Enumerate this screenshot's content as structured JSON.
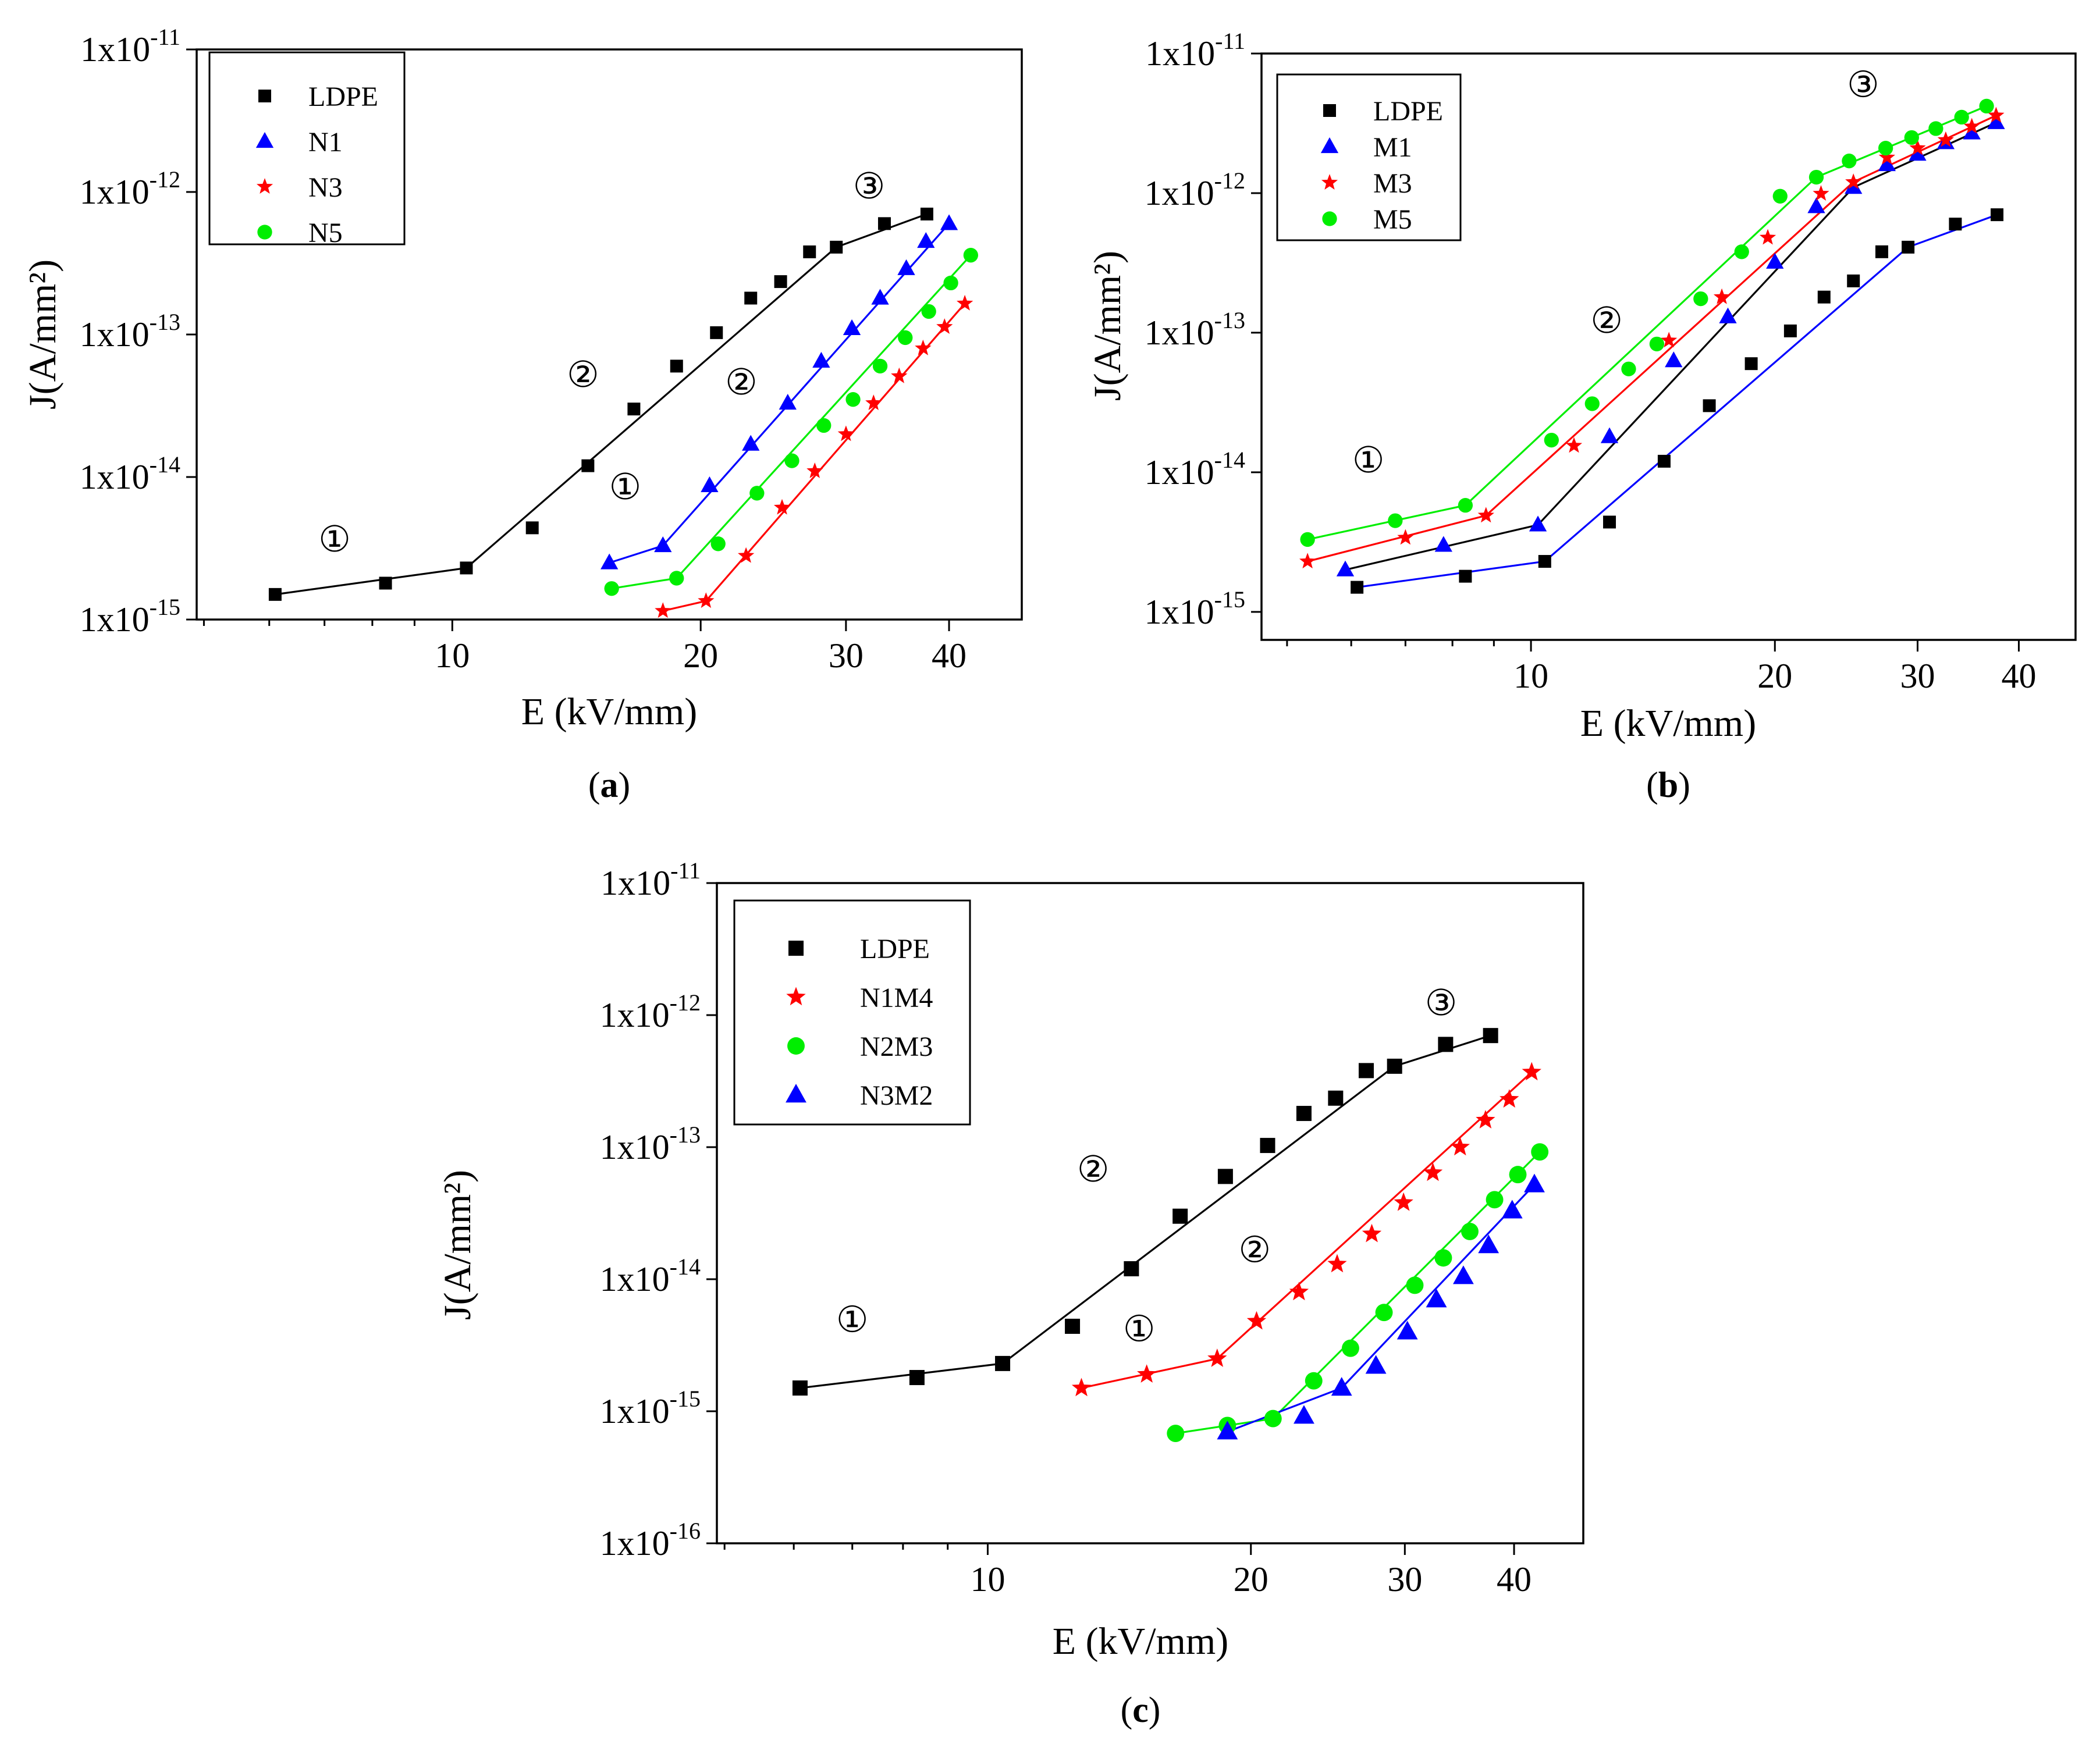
{
  "figure": {
    "captions": [
      "(a)",
      "(b)",
      "(c)"
    ],
    "annotation_symbols": {
      "one": "①",
      "two": "②",
      "three": "③"
    }
  },
  "colors": {
    "LDPE": "#000000",
    "blue": "#0000ff",
    "red": "#ff0000",
    "green": "#00ee00"
  },
  "chart_data": [
    {
      "id": "a",
      "type": "scatter",
      "scale": "log-log",
      "caption_letter": "a",
      "xlabel": "E (kV/mm)",
      "ylabel": "J(A/mm²)",
      "xlim": [
        4.9,
        49
      ],
      "ylim": [
        1e-15,
        1e-11
      ],
      "y_decades": [
        -15,
        -14,
        -13,
        -12,
        -11
      ],
      "x_ticks": [
        10,
        20,
        30,
        40
      ],
      "x_tick_labels": [
        "10",
        "20",
        "30",
        "40"
      ],
      "legend": [
        "LDPE",
        "N1",
        "N3",
        "N5"
      ],
      "series": [
        {
          "name": "LDPE",
          "marker": "square",
          "color": "#000000",
          "x": [
            6.1,
            8.3,
            10.4,
            12.5,
            14.6,
            16.6,
            18.7,
            20.9,
            23.0,
            25.0,
            27.1,
            29.2,
            33.4,
            37.6
          ],
          "y": [
            1.5e-15,
            1.8e-15,
            2.3e-15,
            4.4e-15,
            1.2e-14,
            3e-14,
            6e-14,
            1.03e-13,
            1.8e-13,
            2.35e-13,
            3.8e-13,
            4.1e-13,
            6e-13,
            7e-13
          ],
          "fit_segments": [
            [
              0,
              2
            ],
            [
              2,
              11
            ],
            [
              11,
              13
            ]
          ]
        },
        {
          "name": "N1",
          "marker": "triangle",
          "color": "#0000ff",
          "x": [
            15.5,
            18.0,
            20.5,
            23.0,
            25.5,
            28.0,
            30.5,
            33.0,
            35.5,
            37.5,
            40.0
          ],
          "y": [
            2.5e-15,
            3.3e-15,
            8.7e-15,
            1.7e-14,
            3.3e-14,
            6.5e-14,
            1.1e-13,
            1.8e-13,
            2.9e-13,
            4.5e-13,
            6e-13
          ],
          "fit_segments": [
            [
              0,
              1
            ],
            [
              1,
              10
            ]
          ]
        },
        {
          "name": "N3",
          "marker": "star",
          "color": "#ff0000",
          "x": [
            18.0,
            20.3,
            22.7,
            25.1,
            27.5,
            30.0,
            32.4,
            34.8,
            37.2,
            39.5,
            41.8
          ],
          "y": [
            1.15e-15,
            1.35e-15,
            2.8e-15,
            6.1e-15,
            1.1e-14,
            2e-14,
            3.3e-14,
            5.1e-14,
            8e-14,
            1.13e-13,
            1.65e-13
          ],
          "fit_segments": [
            [
              0,
              1
            ],
            [
              1,
              10
            ]
          ]
        },
        {
          "name": "N5",
          "marker": "circle",
          "color": "#00ee00",
          "x": [
            15.6,
            18.7,
            21.0,
            23.4,
            25.8,
            28.2,
            30.6,
            33.0,
            35.4,
            37.8,
            40.2,
            42.5
          ],
          "y": [
            1.65e-15,
            1.95e-15,
            3.4e-15,
            7.7e-15,
            1.3e-14,
            2.3e-14,
            3.5e-14,
            6e-14,
            9.5e-14,
            1.45e-13,
            2.3e-13,
            3.6e-13
          ],
          "fit_segments": [
            [
              0,
              1
            ],
            [
              1,
              11
            ]
          ]
        }
      ],
      "annotations": [
        {
          "text": "①",
          "x": 7.2,
          "y": 3e-15
        },
        {
          "text": "②",
          "x": 14.4,
          "y": 4.3e-14
        },
        {
          "text": "③",
          "x": 32.0,
          "y": 9e-13
        },
        {
          "text": "①",
          "x": 16.2,
          "y": 7e-15
        },
        {
          "text": "②",
          "x": 22.4,
          "y": 3.8e-14
        }
      ]
    },
    {
      "id": "b",
      "type": "scatter",
      "scale": "log-log",
      "caption_letter": "b",
      "xlabel": "E (kV/mm)",
      "ylabel": "J(A/mm²)",
      "xlim": [
        4.65,
        47
      ],
      "ylim": [
        6.3e-16,
        1e-11
      ],
      "y_decades": [
        -15,
        -14,
        -13,
        -12,
        -11
      ],
      "x_ticks": [
        10,
        20,
        30,
        40
      ],
      "x_tick_labels": [
        "10",
        "20",
        "30",
        "40"
      ],
      "legend": [
        "LDPE",
        "M1",
        "M3",
        "M5"
      ],
      "series": [
        {
          "name": "LDPE",
          "marker": "square",
          "color": "#000000",
          "line_color": "#0000ff",
          "x": [
            6.1,
            8.3,
            10.4,
            12.5,
            14.6,
            16.6,
            18.7,
            20.9,
            23.0,
            25.0,
            27.1,
            29.2,
            33.4,
            37.6
          ],
          "y": [
            1.5e-15,
            1.8e-15,
            2.3e-15,
            4.4e-15,
            1.2e-14,
            3e-14,
            6e-14,
            1.03e-13,
            1.8e-13,
            2.35e-13,
            3.8e-13,
            4.1e-13,
            6e-13,
            7e-13
          ],
          "fit_segments": [
            [
              0,
              2
            ],
            [
              2,
              11
            ],
            [
              11,
              13
            ]
          ]
        },
        {
          "name": "M1",
          "marker": "triangle",
          "color": "#0000ff",
          "line_color": "#000000",
          "x": [
            5.9,
            7.8,
            10.2,
            12.5,
            15.0,
            17.5,
            20.0,
            22.5,
            25.0,
            27.5,
            30.0,
            32.5,
            35.0,
            37.5
          ],
          "y": [
            2e-15,
            3e-15,
            4.2e-15,
            1.8e-14,
            6.3e-14,
            1.3e-13,
            3.2e-13,
            8e-13,
            1.1e-12,
            1.6e-12,
            1.9e-12,
            2.3e-12,
            2.7e-12,
            3.2e-12
          ],
          "fit_segments": [
            [
              0,
              2
            ],
            [
              2,
              8
            ],
            [
              8,
              13
            ]
          ]
        },
        {
          "name": "M3",
          "marker": "star",
          "color": "#ff0000",
          "x": [
            5.3,
            7.0,
            8.8,
            11.3,
            14.8,
            17.2,
            19.6,
            22.8,
            25.0,
            27.5,
            30.0,
            32.5,
            35.0,
            37.5
          ],
          "y": [
            2.3e-15,
            3.4e-15,
            4.9e-15,
            1.55e-14,
            8.8e-14,
            1.8e-13,
            4.8e-13,
            9.9e-13,
            1.2e-12,
            1.8e-12,
            2.1e-12,
            2.4e-12,
            3e-12,
            3.6e-12
          ],
          "fit_segments": [
            [
              0,
              2
            ],
            [
              2,
              8
            ],
            [
              8,
              13
            ]
          ]
        },
        {
          "name": "M5",
          "marker": "circle",
          "color": "#00ee00",
          "x": [
            5.3,
            6.8,
            8.3,
            10.6,
            11.9,
            13.2,
            14.3,
            16.2,
            18.2,
            20.3,
            22.5,
            24.7,
            27.4,
            29.5,
            31.6,
            34.0,
            36.5
          ],
          "y": [
            3.3e-15,
            4.5e-15,
            5.8e-15,
            1.7e-14,
            3.1e-14,
            5.5e-14,
            8.3e-14,
            1.75e-13,
            3.8e-13,
            9.5e-13,
            1.3e-12,
            1.7e-12,
            2.1e-12,
            2.5e-12,
            2.9e-12,
            3.5e-12,
            4.2e-12
          ],
          "fit_segments": [
            [
              0,
              2
            ],
            [
              2,
              10
            ],
            [
              10,
              16
            ]
          ]
        }
      ],
      "annotations": [
        {
          "text": "①",
          "x": 6.3,
          "y": 1e-14
        },
        {
          "text": "②",
          "x": 12.4,
          "y": 1e-13
        },
        {
          "text": "③",
          "x": 25.7,
          "y": 4.9e-12
        }
      ]
    },
    {
      "id": "c",
      "type": "scatter",
      "scale": "log-log",
      "caption_letter": "c",
      "xlabel": "E (kV/mm)",
      "ylabel": "J(A/mm²)",
      "xlim": [
        4.9,
        48
      ],
      "ylim": [
        1e-16,
        1e-11
      ],
      "y_decades": [
        -16,
        -15,
        -14,
        -13,
        -12,
        -11
      ],
      "x_ticks": [
        10,
        20,
        30,
        40
      ],
      "x_tick_labels": [
        "10",
        "20",
        "30",
        "40"
      ],
      "legend": [
        "LDPE",
        "N1M4",
        "N2M3",
        "N3M2"
      ],
      "series": [
        {
          "name": "LDPE",
          "marker": "square",
          "color": "#000000",
          "x": [
            6.1,
            8.3,
            10.4,
            12.5,
            14.6,
            16.6,
            18.7,
            20.9,
            23.0,
            25.0,
            27.1,
            29.2,
            33.4,
            37.6
          ],
          "y": [
            1.5e-15,
            1.8e-15,
            2.3e-15,
            4.4e-15,
            1.2e-14,
            3e-14,
            6e-14,
            1.03e-13,
            1.8e-13,
            2.35e-13,
            3.8e-13,
            4.1e-13,
            6e-13,
            7e-13
          ],
          "fit_segments": [
            [
              0,
              2
            ],
            [
              2,
              11
            ],
            [
              11,
              13
            ]
          ]
        },
        {
          "name": "N1M4",
          "marker": "star",
          "color": "#ff0000",
          "x": [
            12.8,
            15.2,
            18.3,
            20.3,
            22.7,
            25.1,
            27.5,
            29.9,
            32.3,
            34.7,
            37.1,
            39.5,
            41.9
          ],
          "y": [
            1.5e-15,
            1.9e-15,
            2.5e-15,
            4.8e-15,
            8e-15,
            1.3e-14,
            2.2e-14,
            3.8e-14,
            6.4e-14,
            1e-13,
            1.6e-13,
            2.3e-13,
            3.7e-13
          ],
          "fit_segments": [
            [
              0,
              2
            ],
            [
              2,
              12
            ]
          ]
        },
        {
          "name": "N2M3",
          "marker": "circle",
          "color": "#00ee00",
          "x": [
            16.4,
            18.8,
            21.2,
            23.6,
            26.0,
            28.4,
            30.8,
            33.2,
            35.6,
            38.0,
            40.4,
            42.8
          ],
          "y": [
            6.8e-16,
            7.8e-16,
            8.8e-16,
            1.7e-15,
            3e-15,
            5.6e-15,
            9e-15,
            1.45e-14,
            2.3e-14,
            4e-14,
            6.2e-14,
            9.2e-14
          ],
          "fit_segments": [
            [
              0,
              2
            ],
            [
              2,
              11
            ]
          ]
        },
        {
          "name": "N3M2",
          "marker": "triangle",
          "color": "#0000ff",
          "x": [
            18.8,
            23.0,
            25.4,
            27.8,
            30.2,
            32.6,
            35.0,
            37.4,
            39.8,
            42.2
          ],
          "y": [
            7e-16,
            9.2e-16,
            1.5e-15,
            2.2e-15,
            4e-15,
            7e-15,
            1.05e-14,
            1.8e-14,
            3.3e-14,
            5.2e-14
          ],
          "fit_segments": [
            [
              0,
              2
            ],
            [
              2,
              9
            ]
          ]
        }
      ],
      "annotations": [
        {
          "text": "①",
          "x": 7.0,
          "y": 4e-15
        },
        {
          "text": "②",
          "x": 13.2,
          "y": 5.5e-14
        },
        {
          "text": "③",
          "x": 33.0,
          "y": 1e-12
        },
        {
          "text": "①",
          "x": 14.9,
          "y": 3.4e-15
        },
        {
          "text": "②",
          "x": 20.2,
          "y": 1.35e-14
        }
      ]
    }
  ]
}
